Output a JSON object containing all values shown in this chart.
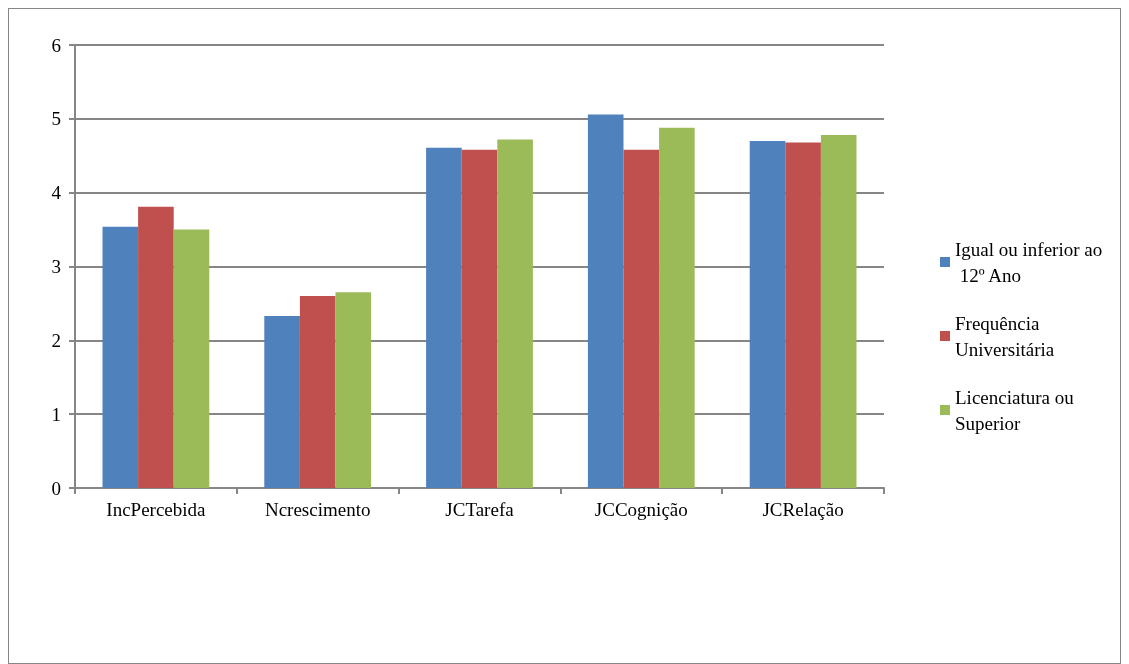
{
  "chart_data": {
    "type": "bar",
    "categories": [
      "IncPercebida",
      "Ncrescimento",
      "JCTarefa",
      "JCCognição",
      "JCRelação"
    ],
    "series": [
      {
        "name": "Igual ou inferior ao 12º Ano",
        "color": "#4f81bd",
        "values": [
          3.54,
          2.33,
          4.61,
          5.06,
          4.7
        ]
      },
      {
        "name": "Frequência Universitária",
        "color": "#c0504d",
        "values": [
          3.81,
          2.6,
          4.58,
          4.58,
          4.68
        ]
      },
      {
        "name": "Licenciatura ou Superior",
        "color": "#9bbb59",
        "values": [
          3.5,
          2.65,
          4.72,
          4.88,
          4.78
        ]
      }
    ],
    "ylim": [
      0,
      6
    ],
    "yticks": [
      0,
      1,
      2,
      3,
      4,
      5,
      6
    ],
    "grid": "y",
    "legend": "right"
  }
}
